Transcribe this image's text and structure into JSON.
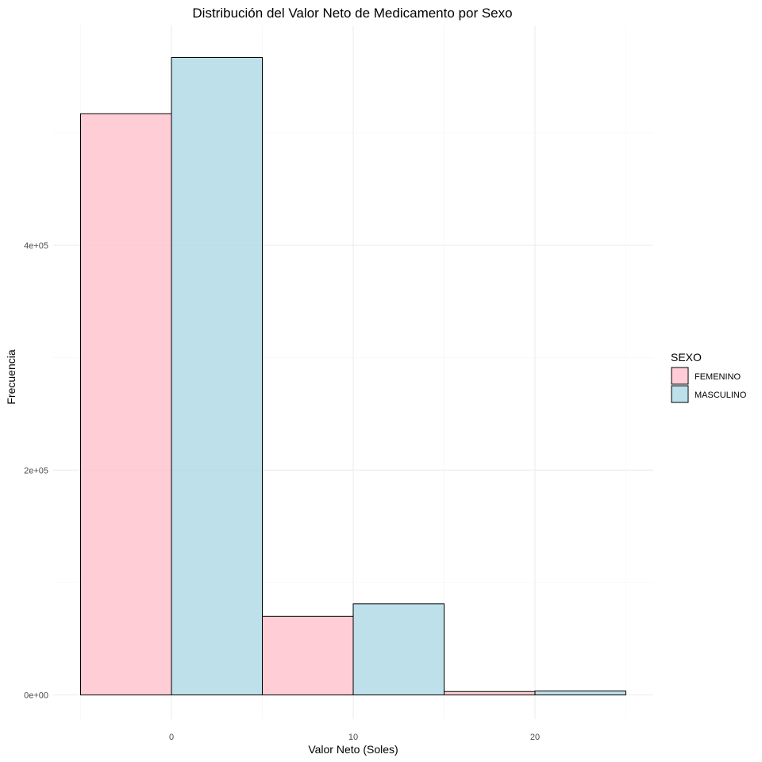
{
  "chart_data": {
    "type": "bar",
    "title": "Distribución del Valor Neto de Medicamento por Sexo",
    "xlabel": "Valor Neto (Soles)",
    "ylabel": "Frecuencia",
    "legend_title": "SEXO",
    "legend_position": "right",
    "grid": true,
    "xlim": [
      -5,
      25
    ],
    "ylim": [
      0,
      560000
    ],
    "x_ticks": [
      0,
      10,
      20
    ],
    "x_tick_labels": [
      "0",
      "10",
      "20"
    ],
    "y_ticks": [
      0,
      200000,
      400000
    ],
    "y_tick_labels": [
      "0e+00",
      "2e+05",
      "4e+05"
    ],
    "bin_width": 10,
    "bin_centers": [
      0,
      10,
      20
    ],
    "series": [
      {
        "name": "FEMENINO",
        "color": "#ffc0cb",
        "values": [
          517000,
          70000,
          3000
        ]
      },
      {
        "name": "MASCULINO",
        "color": "#add8e6",
        "values": [
          567000,
          81000,
          3500
        ]
      }
    ]
  }
}
